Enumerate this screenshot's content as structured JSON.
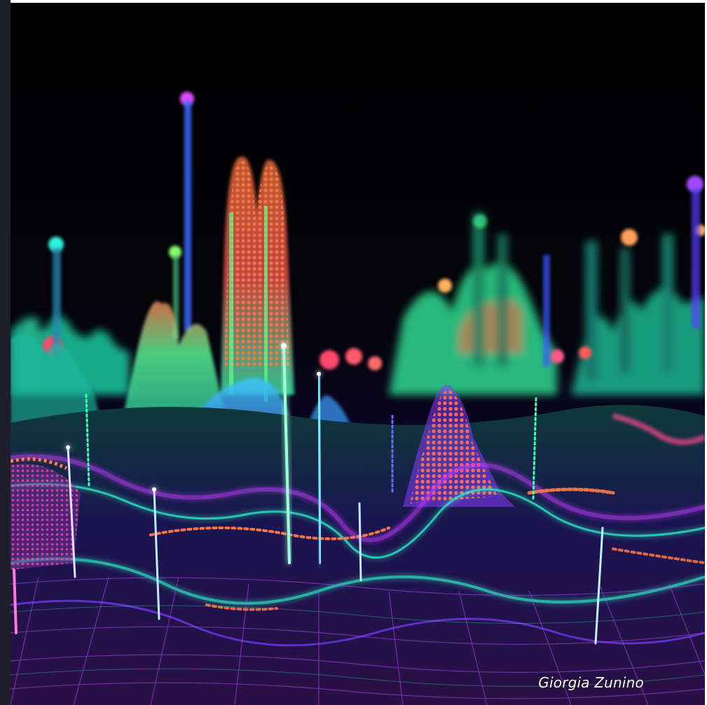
{
  "image": {
    "subject": "abstract-neon-data-landscape",
    "colors": {
      "background": "#000000",
      "cyan": "#2ef2c8",
      "green": "#5cff8a",
      "magenta": "#c43cff",
      "violet": "#7a3cff",
      "orange": "#ff6a3d",
      "pink": "#ff3d8a",
      "blue": "#3d7aff",
      "frame": "#1e1e2a"
    }
  },
  "credit": {
    "text": "Giorgia Zunino"
  }
}
